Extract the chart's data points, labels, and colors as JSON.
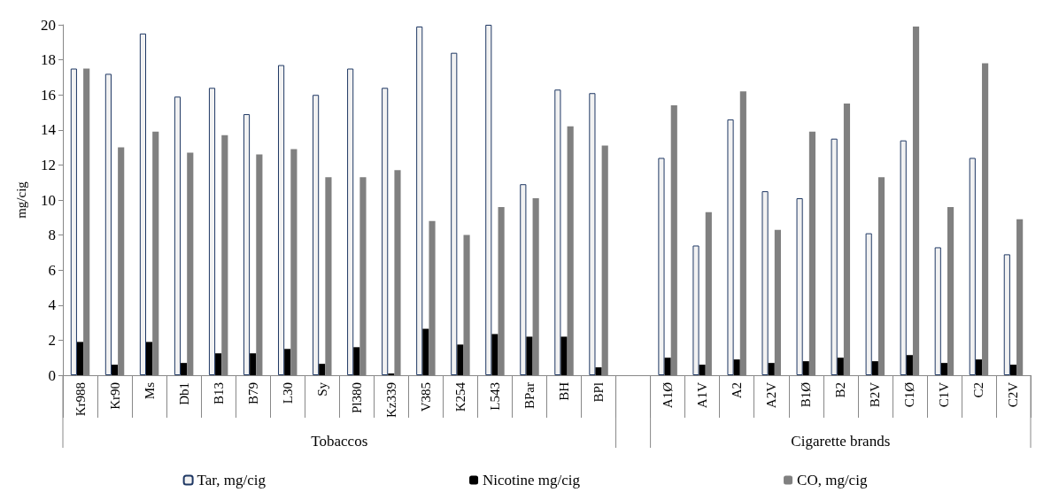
{
  "chart_data": {
    "type": "bar",
    "ylabel": "mg/cig",
    "categories": [
      "Kr988",
      "Kr90",
      "Ms",
      "Db1",
      "B13",
      "B79",
      "L30",
      "Sy",
      "Pl380",
      "Kz339",
      "V385",
      "K254",
      "L543",
      "BPar",
      "BH",
      "BPl",
      null,
      "A1Ø",
      "A1V",
      "A2",
      "A2V",
      "B1Ø",
      "B2",
      "B2V",
      "C1Ø",
      "C1V",
      "C2",
      "C2V"
    ],
    "series": [
      {
        "name": "Tar, mg/cig",
        "color": "#f2f2f2",
        "values": [
          17.5,
          17.2,
          19.5,
          15.9,
          16.4,
          14.9,
          17.7,
          16.0,
          17.5,
          16.4,
          19.9,
          18.4,
          20,
          10.9,
          16.3,
          16.1,
          null,
          12.4,
          7.4,
          14.6,
          10.5,
          10.1,
          13.5,
          8.1,
          13.4,
          7.3,
          12.4,
          6.9
        ]
      },
      {
        "name": "Nicotine mg/cig",
        "color": "#000000",
        "values": [
          1.9,
          0.6,
          1.9,
          0.7,
          1.25,
          1.25,
          1.5,
          0.65,
          1.6,
          0.1,
          2.65,
          1.75,
          2.35,
          2.2,
          2.2,
          0.45,
          null,
          1.0,
          0.6,
          0.9,
          0.7,
          0.8,
          1.0,
          0.8,
          1.15,
          0.7,
          0.9,
          0.6
        ]
      },
      {
        "name": "CO, mg/cig",
        "color": "#808080",
        "values": [
          17.5,
          13.0,
          13.9,
          12.7,
          13.7,
          12.6,
          12.9,
          11.3,
          11.3,
          11.7,
          8.8,
          8.0,
          9.6,
          10.1,
          14.2,
          13.1,
          null,
          15.4,
          9.3,
          16.2,
          8.3,
          13.9,
          15.5,
          11.3,
          19.9,
          9.6,
          17.8,
          8.9
        ]
      }
    ],
    "annotations": [
      "Tobaccos",
      "Cigarette brands"
    ],
    "ylim": [
      0,
      20
    ],
    "yticks": [
      0,
      2,
      4,
      6,
      8,
      10,
      12,
      14,
      16,
      18,
      20
    ],
    "grid": false,
    "legend": "bottom"
  }
}
